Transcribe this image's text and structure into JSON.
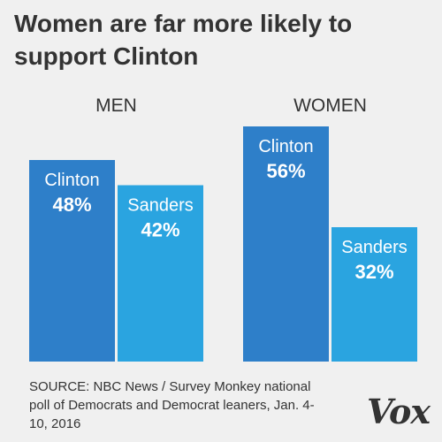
{
  "title": "Women are far more likely to support Clinton",
  "source": "SOURCE: NBC News / Survey Monkey national poll of Democrats and Democrat leaners, Jan. 4-10, 2016",
  "brand": "Vox",
  "colors": {
    "background": "#f0f0f0",
    "text": "#333333",
    "clinton": "#2e7fc9",
    "sanders": "#2aa4e0",
    "bar_text": "#ffffff"
  },
  "chart_data": {
    "type": "bar",
    "title": "Women are far more likely to support Clinton",
    "groups": [
      "MEN",
      "WOMEN"
    ],
    "series": [
      {
        "name": "Clinton",
        "values": [
          48,
          56
        ]
      },
      {
        "name": "Sanders",
        "values": [
          42,
          32
        ]
      }
    ],
    "value_labels": [
      [
        "48%",
        "42%"
      ],
      [
        "56%",
        "32%"
      ]
    ],
    "unit": "%",
    "ylim": [
      0,
      60
    ],
    "grid": false,
    "legend": "none"
  }
}
